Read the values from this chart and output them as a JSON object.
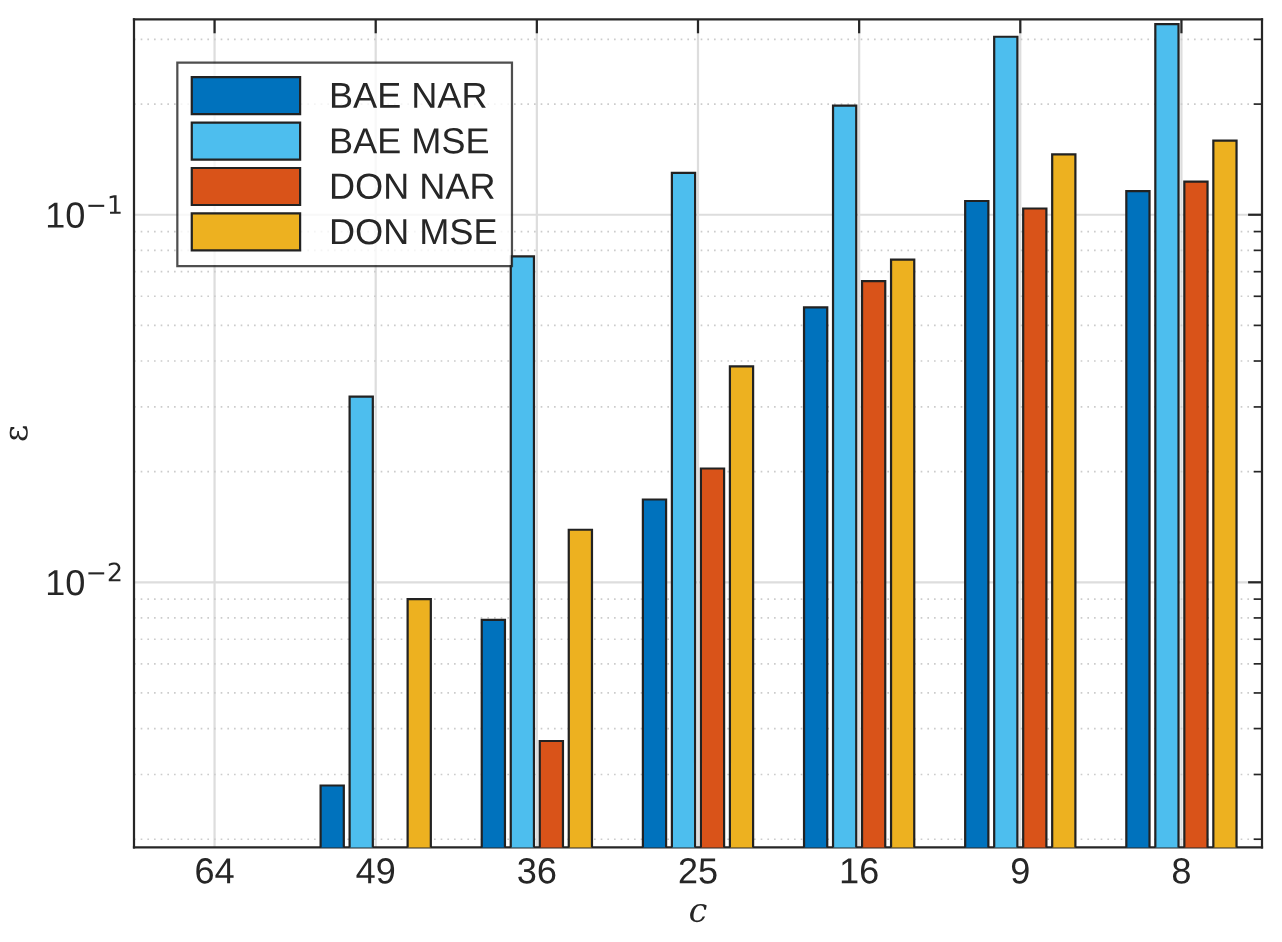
{
  "chart_data": {
    "type": "bar",
    "xlabel": "c",
    "ylabel": "ε",
    "categories": [
      "64",
      "49",
      "36",
      "25",
      "16",
      "9",
      "8"
    ],
    "series": [
      {
        "name": "BAE NAR",
        "color": "#0072bd",
        "values": [
          null,
          0.0028,
          0.0079,
          0.0168,
          0.056,
          0.109,
          0.116
        ]
      },
      {
        "name": "BAE MSE",
        "color": "#4dbeee",
        "values": [
          null,
          0.032,
          0.077,
          0.13,
          0.198,
          0.305,
          0.33
        ]
      },
      {
        "name": "DON NAR",
        "color": "#d95319",
        "values": [
          null,
          null,
          0.0037,
          0.0204,
          0.066,
          0.104,
          0.123
        ]
      },
      {
        "name": "DON MSE",
        "color": "#edb120",
        "values": [
          null,
          0.009,
          0.0139,
          0.0387,
          0.0755,
          0.146,
          0.159
        ]
      }
    ],
    "log": "y",
    "ylim": [
      0.0019,
      0.34
    ],
    "yticks": [
      {
        "value": 0.01,
        "label": "10$^{−2}$"
      },
      {
        "value": 0.1,
        "label": "10$^{−1}$"
      }
    ],
    "grid": true,
    "legend": "top left"
  }
}
